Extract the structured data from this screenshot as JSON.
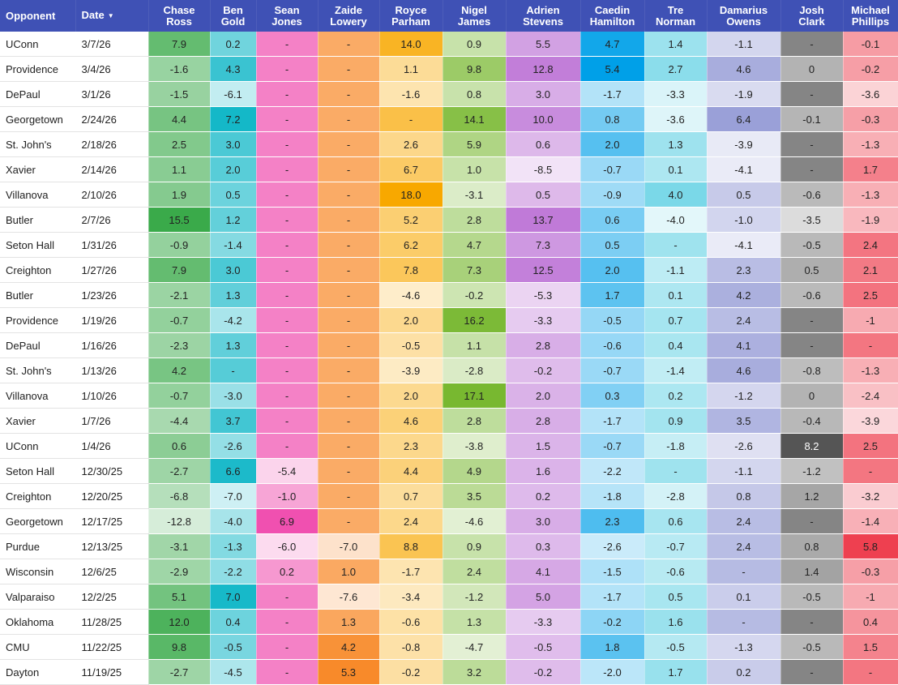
{
  "header": {
    "opponent": "Opponent",
    "date": "Date",
    "players": [
      [
        "Chase",
        "Ross"
      ],
      [
        "Ben",
        "Gold"
      ],
      [
        "Sean",
        "Jones"
      ],
      [
        "Zaide",
        "Lowery"
      ],
      [
        "Royce",
        "Parham"
      ],
      [
        "Nigel",
        "James"
      ],
      [
        "Adrien",
        "Stevens"
      ],
      [
        "Caedin",
        "Hamilton"
      ],
      [
        "Tre",
        "Norman"
      ],
      [
        "Damarius",
        "Owens"
      ],
      [
        "Josh",
        "Clark"
      ],
      [
        "Michael",
        "Phillips"
      ]
    ]
  },
  "sort_indicator": "▼",
  "player_hues": [
    "#3aaa4a",
    "#14b8c8",
    "#f050b0",
    "#f88a2a",
    "#f8a800",
    "#78b830",
    "#c07ad8",
    "#00a0e8",
    "#7ad8e8",
    "#9aa0d8",
    "#555555",
    "#ee4050"
  ],
  "rows": [
    {
      "opp": "UConn",
      "date": "3/7/26",
      "vals": [
        "7.9",
        "0.2",
        "-",
        "-",
        "14.0",
        "0.9",
        "5.5",
        "4.7",
        "1.4",
        "-1.1",
        "-",
        "-0.1"
      ]
    },
    {
      "opp": "Providence",
      "date": "3/4/26",
      "vals": [
        "-1.6",
        "4.3",
        "-",
        "-",
        "1.1",
        "9.8",
        "12.8",
        "5.4",
        "2.7",
        "4.6",
        "0",
        "-0.2"
      ]
    },
    {
      "opp": "DePaul",
      "date": "3/1/26",
      "vals": [
        "-1.5",
        "-6.1",
        "-",
        "-",
        "-1.6",
        "0.8",
        "3.0",
        "-1.7",
        "-3.3",
        "-1.9",
        "-",
        "-3.6"
      ]
    },
    {
      "opp": "Georgetown",
      "date": "2/24/26",
      "vals": [
        "4.4",
        "7.2",
        "-",
        "-",
        "-",
        "14.1",
        "10.0",
        "0.8",
        "-3.6",
        "6.4",
        "-0.1",
        "-0.3"
      ]
    },
    {
      "opp": "St. John's",
      "date": "2/18/26",
      "vals": [
        "2.5",
        "3.0",
        "-",
        "-",
        "2.6",
        "5.9",
        "0.6",
        "2.0",
        "1.3",
        "-3.9",
        "-",
        "-1.3"
      ]
    },
    {
      "opp": "Xavier",
      "date": "2/14/26",
      "vals": [
        "1.1",
        "2.0",
        "-",
        "-",
        "6.7",
        "1.0",
        "-8.5",
        "-0.7",
        "0.1",
        "-4.1",
        "-",
        "1.7"
      ]
    },
    {
      "opp": "Villanova",
      "date": "2/10/26",
      "vals": [
        "1.9",
        "0.5",
        "-",
        "-",
        "18.0",
        "-3.1",
        "0.5",
        "-0.9",
        "4.0",
        "0.5",
        "-0.6",
        "-1.3"
      ]
    },
    {
      "opp": "Butler",
      "date": "2/7/26",
      "vals": [
        "15.5",
        "1.2",
        "-",
        "-",
        "5.2",
        "2.8",
        "13.7",
        "0.6",
        "-4.0",
        "-1.0",
        "-3.5",
        "-1.9"
      ]
    },
    {
      "opp": "Seton Hall",
      "date": "1/31/26",
      "vals": [
        "-0.9",
        "-1.4",
        "-",
        "-",
        "6.2",
        "4.7",
        "7.3",
        "0.5",
        "-",
        "-4.1",
        "-0.5",
        "2.4"
      ]
    },
    {
      "opp": "Creighton",
      "date": "1/27/26",
      "vals": [
        "7.9",
        "3.0",
        "-",
        "-",
        "7.8",
        "7.3",
        "12.5",
        "2.0",
        "-1.1",
        "2.3",
        "0.5",
        "2.1"
      ]
    },
    {
      "opp": "Butler",
      "date": "1/23/26",
      "vals": [
        "-2.1",
        "1.3",
        "-",
        "-",
        "-4.6",
        "-0.2",
        "-5.3",
        "1.7",
        "0.1",
        "4.2",
        "-0.6",
        "2.5"
      ]
    },
    {
      "opp": "Providence",
      "date": "1/19/26",
      "vals": [
        "-0.7",
        "-4.2",
        "-",
        "-",
        "2.0",
        "16.2",
        "-3.3",
        "-0.5",
        "0.7",
        "2.4",
        "-",
        "-1"
      ]
    },
    {
      "opp": "DePaul",
      "date": "1/16/26",
      "vals": [
        "-2.3",
        "1.3",
        "-",
        "-",
        "-0.5",
        "1.1",
        "2.8",
        "-0.6",
        "0.4",
        "4.1",
        "-",
        "-"
      ]
    },
    {
      "opp": "St. John's",
      "date": "1/13/26",
      "vals": [
        "4.2",
        "-",
        "-",
        "-",
        "-3.9",
        "-2.8",
        "-0.2",
        "-0.7",
        "-1.4",
        "4.6",
        "-0.8",
        "-1.3"
      ]
    },
    {
      "opp": "Villanova",
      "date": "1/10/26",
      "vals": [
        "-0.7",
        "-3.0",
        "-",
        "-",
        "2.0",
        "17.1",
        "2.0",
        "0.3",
        "0.2",
        "-1.2",
        "0",
        "-2.4"
      ]
    },
    {
      "opp": "Xavier",
      "date": "1/7/26",
      "vals": [
        "-4.4",
        "3.7",
        "-",
        "-",
        "4.6",
        "2.8",
        "2.8",
        "-1.7",
        "0.9",
        "3.5",
        "-0.4",
        "-3.9"
      ]
    },
    {
      "opp": "UConn",
      "date": "1/4/26",
      "vals": [
        "0.6",
        "-2.6",
        "-",
        "-",
        "2.3",
        "-3.8",
        "1.5",
        "-0.7",
        "-1.8",
        "-2.6",
        "8.2",
        "2.5"
      ]
    },
    {
      "opp": "Seton Hall",
      "date": "12/30/25",
      "vals": [
        "-2.7",
        "6.6",
        "-5.4",
        "-",
        "4.4",
        "4.9",
        "1.6",
        "-2.2",
        "-",
        "-1.1",
        "-1.2",
        "-"
      ]
    },
    {
      "opp": "Creighton",
      "date": "12/20/25",
      "vals": [
        "-6.8",
        "-7.0",
        "-1.0",
        "-",
        "0.7",
        "3.5",
        "0.2",
        "-1.8",
        "-2.8",
        "0.8",
        "1.2",
        "-3.2"
      ]
    },
    {
      "opp": "Georgetown",
      "date": "12/17/25",
      "vals": [
        "-12.8",
        "-4.0",
        "6.9",
        "-",
        "2.4",
        "-4.6",
        "3.0",
        "2.3",
        "0.6",
        "2.4",
        "-",
        "-1.4"
      ]
    },
    {
      "opp": "Purdue",
      "date": "12/13/25",
      "vals": [
        "-3.1",
        "-1.3",
        "-6.0",
        "-7.0",
        "8.8",
        "0.9",
        "0.3",
        "-2.6",
        "-0.7",
        "2.4",
        "0.8",
        "5.8"
      ]
    },
    {
      "opp": "Wisconsin",
      "date": "12/6/25",
      "vals": [
        "-2.9",
        "-2.2",
        "0.2",
        "1.0",
        "-1.7",
        "2.4",
        "4.1",
        "-1.5",
        "-0.6",
        "-",
        "1.4",
        "-0.3"
      ]
    },
    {
      "opp": "Valparaiso",
      "date": "12/2/25",
      "vals": [
        "5.1",
        "7.0",
        "-",
        "-7.6",
        "-3.4",
        "-1.2",
        "5.0",
        "-1.7",
        "0.5",
        "0.1",
        "-0.5",
        "-1"
      ]
    },
    {
      "opp": "Oklahoma",
      "date": "11/28/25",
      "vals": [
        "12.0",
        "0.4",
        "-",
        "1.3",
        "-0.6",
        "1.3",
        "-3.3",
        "-0.2",
        "1.6",
        "-",
        "-",
        "0.4"
      ]
    },
    {
      "opp": "CMU",
      "date": "11/22/25",
      "vals": [
        "9.8",
        "-0.5",
        "-",
        "4.2",
        "-0.8",
        "-4.7",
        "-0.5",
        "1.8",
        "-0.5",
        "-1.3",
        "-0.5",
        "1.5"
      ]
    },
    {
      "opp": "Dayton",
      "date": "11/19/25",
      "vals": [
        "-2.7",
        "-4.5",
        "-",
        "5.3",
        "-0.2",
        "3.2",
        "-0.2",
        "-2.0",
        "1.7",
        "0.2",
        "-",
        "-"
      ]
    }
  ]
}
